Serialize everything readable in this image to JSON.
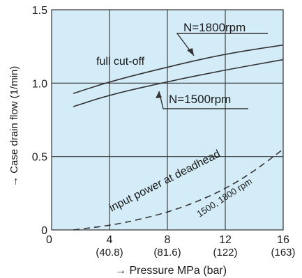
{
  "chart_data": {
    "type": "line",
    "title": "",
    "xlabel": "→ Pressure MPa (bar)",
    "ylabel": "→ Case drain flow (1/min)",
    "xlim": [
      0,
      16
    ],
    "ylim": [
      0,
      1.5
    ],
    "grid": true,
    "background_color": "#d3ecf7",
    "line_color": "#333333",
    "x_ticks": [
      {
        "value": 0,
        "label": "0",
        "sub": ""
      },
      {
        "value": 4,
        "label": "4",
        "sub": "(40.8)"
      },
      {
        "value": 8,
        "label": "8",
        "sub": "(81.6)"
      },
      {
        "value": 12,
        "label": "12",
        "sub": "(122)"
      },
      {
        "value": 16,
        "label": "16",
        "sub": "(163)"
      }
    ],
    "y_ticks": [
      {
        "value": 0,
        "label": "0"
      },
      {
        "value": 0.5,
        "label": "0.5"
      },
      {
        "value": 1.0,
        "label": "1.0"
      },
      {
        "value": 1.5,
        "label": "1.5"
      }
    ],
    "series": [
      {
        "name": "N=1800rpm",
        "style": "solid",
        "points": [
          [
            1.5,
            0.93
          ],
          [
            4,
            1.01
          ],
          [
            8,
            1.11
          ],
          [
            12,
            1.2
          ],
          [
            16,
            1.26
          ]
        ]
      },
      {
        "name": "N=1500rpm",
        "style": "solid",
        "points": [
          [
            1.5,
            0.84
          ],
          [
            4,
            0.92
          ],
          [
            8,
            1.01
          ],
          [
            12,
            1.09
          ],
          [
            16,
            1.16
          ]
        ]
      },
      {
        "name": "1500, 1800 rpm",
        "style": "dashed",
        "points": [
          [
            1.5,
            0.0
          ],
          [
            4,
            0.03
          ],
          [
            6,
            0.07
          ],
          [
            8,
            0.12
          ],
          [
            10,
            0.19
          ],
          [
            12,
            0.28
          ],
          [
            14,
            0.4
          ],
          [
            16,
            0.55
          ]
        ]
      }
    ],
    "annotations": {
      "label_1800": "N=1800rpm",
      "label_1500": "N=1500rpm",
      "full_cutoff": "full cut-off",
      "deadhead": "input power at deadhead",
      "deadhead_rpm": "1500, 1800 rpm"
    }
  }
}
